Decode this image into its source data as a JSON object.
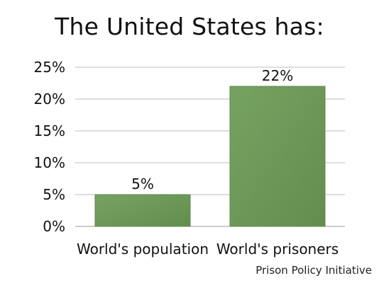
{
  "chart_data": {
    "type": "bar",
    "title": "The United States has:",
    "categories": [
      "World's population",
      "World's prisoners"
    ],
    "values": [
      5,
      22
    ],
    "data_labels": [
      "5%",
      "22%"
    ],
    "xlabel": "",
    "ylabel": "",
    "ylim": [
      0,
      25
    ],
    "yticks": [
      0,
      5,
      10,
      15,
      20,
      25
    ],
    "ytick_labels": [
      "0%",
      "5%",
      "10%",
      "15%",
      "20%",
      "25%"
    ],
    "grid": true,
    "legend": "none",
    "bar_color": "#6e9a5a",
    "bar_color_dark": "#5f8a4b",
    "grid_color": "#bdbdbd"
  },
  "source": "Prison Policy Initiative"
}
